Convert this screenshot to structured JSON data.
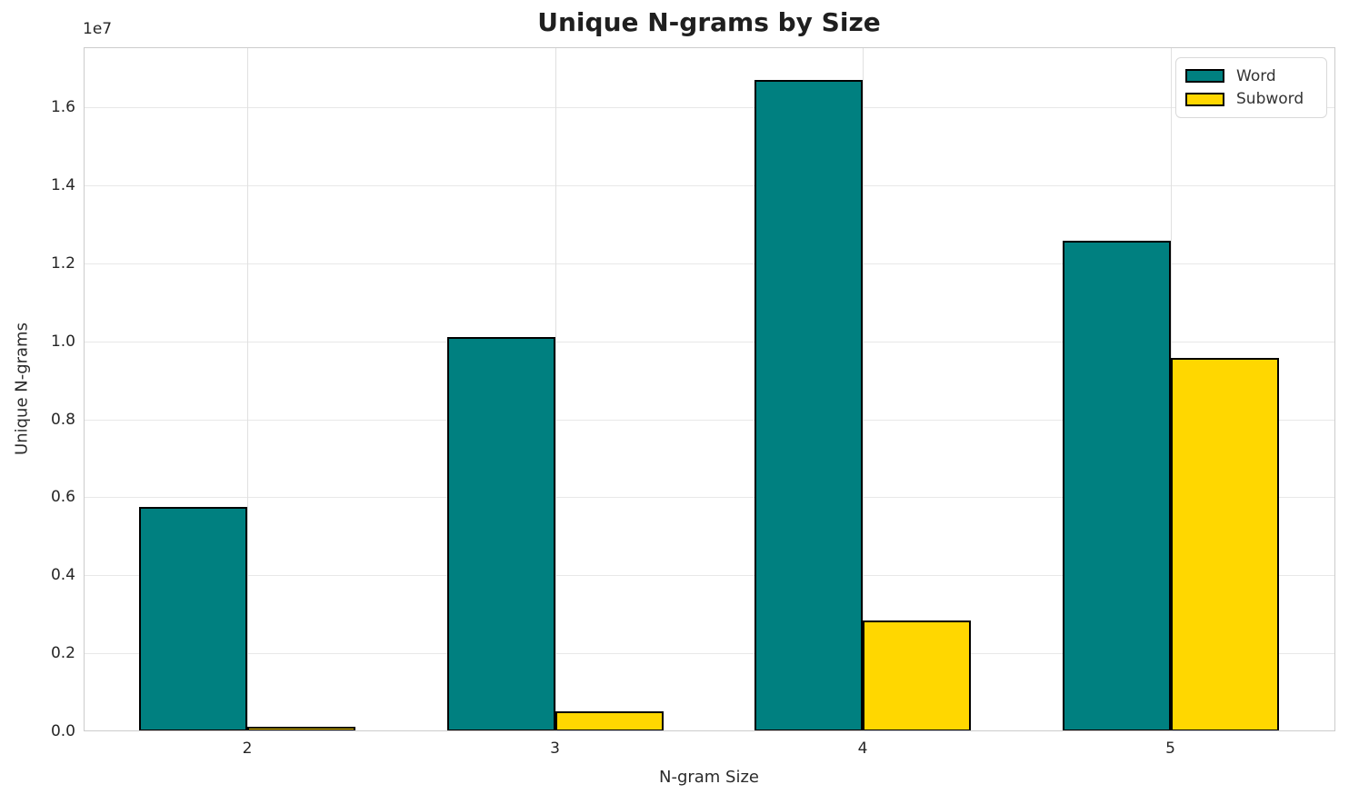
{
  "chart_data": {
    "type": "bar",
    "title": "Unique N-grams by Size",
    "xlabel": "N-gram Size",
    "ylabel": "Unique N-grams",
    "y_offset_text": "1e7",
    "categories": [
      "2",
      "3",
      "4",
      "5"
    ],
    "series": [
      {
        "name": "Word",
        "color": "#008080",
        "values": [
          5760000,
          10100000,
          16700000,
          12580000
        ]
      },
      {
        "name": "Subword",
        "color": "#FFD700",
        "values": [
          110000,
          510000,
          2840000,
          9580000
        ]
      }
    ],
    "bar_edge_color": "#000000",
    "ylim": [
      0,
      17540000
    ],
    "yticks": [
      0,
      2000000,
      4000000,
      6000000,
      8000000,
      10000000,
      12000000,
      14000000,
      16000000
    ],
    "ytick_labels": [
      "0.0",
      "0.2",
      "0.4",
      "0.6",
      "0.8",
      "1.0",
      "1.2",
      "1.4",
      "1.6"
    ],
    "grid": true,
    "legend_position": "upper right",
    "colors": {
      "background": "#ffffff",
      "grid": "#e8e8e8",
      "spine": "#cccccc",
      "text": "#262626",
      "title": "#1f1f1f"
    }
  }
}
